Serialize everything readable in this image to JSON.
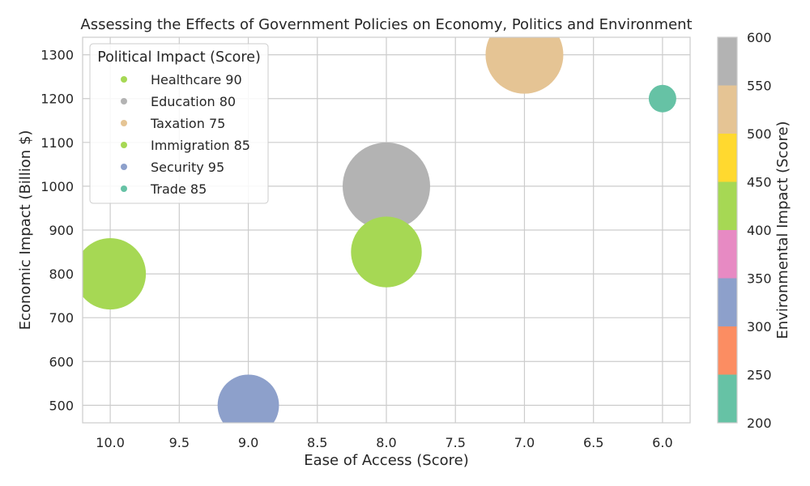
{
  "chart_data": {
    "type": "scatter",
    "title": "Assessing the Effects of Government Policies on Economy, Politics and Environment",
    "xlabel": "Ease of Access (Score)",
    "ylabel": "Economic Impact (Billion $)",
    "xlim": [
      10.2,
      5.8
    ],
    "ylim": [
      460,
      1340
    ],
    "x_ticks": [
      10.0,
      9.5,
      9.0,
      8.5,
      8.0,
      7.5,
      7.0,
      6.5,
      6.0
    ],
    "y_ticks": [
      500,
      600,
      700,
      800,
      900,
      1000,
      1100,
      1200,
      1300
    ],
    "grid": true,
    "legend": {
      "title": "Political Impact (Score)",
      "placement": "upper-left",
      "entries": [
        "Healthcare 90",
        "Education 80",
        "Taxation 75",
        "Immigration 85",
        "Security 95",
        "Trade 85"
      ]
    },
    "colorbar": {
      "label": "Environmental Impact (Score)",
      "range": [
        200,
        600
      ],
      "ticks": [
        200,
        250,
        300,
        350,
        400,
        450,
        500,
        550,
        600
      ],
      "colors": [
        "#66c2a5",
        "#fc8d62",
        "#8da0cb",
        "#e78ac3",
        "#a6d854",
        "#ffd92f",
        "#e5c494",
        "#b3b3b3"
      ]
    },
    "points": [
      {
        "label": "Healthcare",
        "political": 90,
        "x": 10.0,
        "y": 800,
        "environmental": 400,
        "color": "#a6d854"
      },
      {
        "label": "Education",
        "political": 80,
        "x": 8.0,
        "y": 1000,
        "environmental": 575,
        "color": "#b3b3b3"
      },
      {
        "label": "Taxation",
        "political": 75,
        "x": 7.0,
        "y": 1300,
        "environmental": 530,
        "color": "#e5c494"
      },
      {
        "label": "Immigration",
        "political": 85,
        "x": 8.0,
        "y": 850,
        "environmental": 420,
        "color": "#a6d854"
      },
      {
        "label": "Security",
        "political": 95,
        "x": 9.0,
        "y": 500,
        "environmental": 325,
        "color": "#8da0cb"
      },
      {
        "label": "Trade",
        "political": 85,
        "x": 6.0,
        "y": 1200,
        "environmental": 225,
        "color": "#66c2a5"
      }
    ]
  }
}
